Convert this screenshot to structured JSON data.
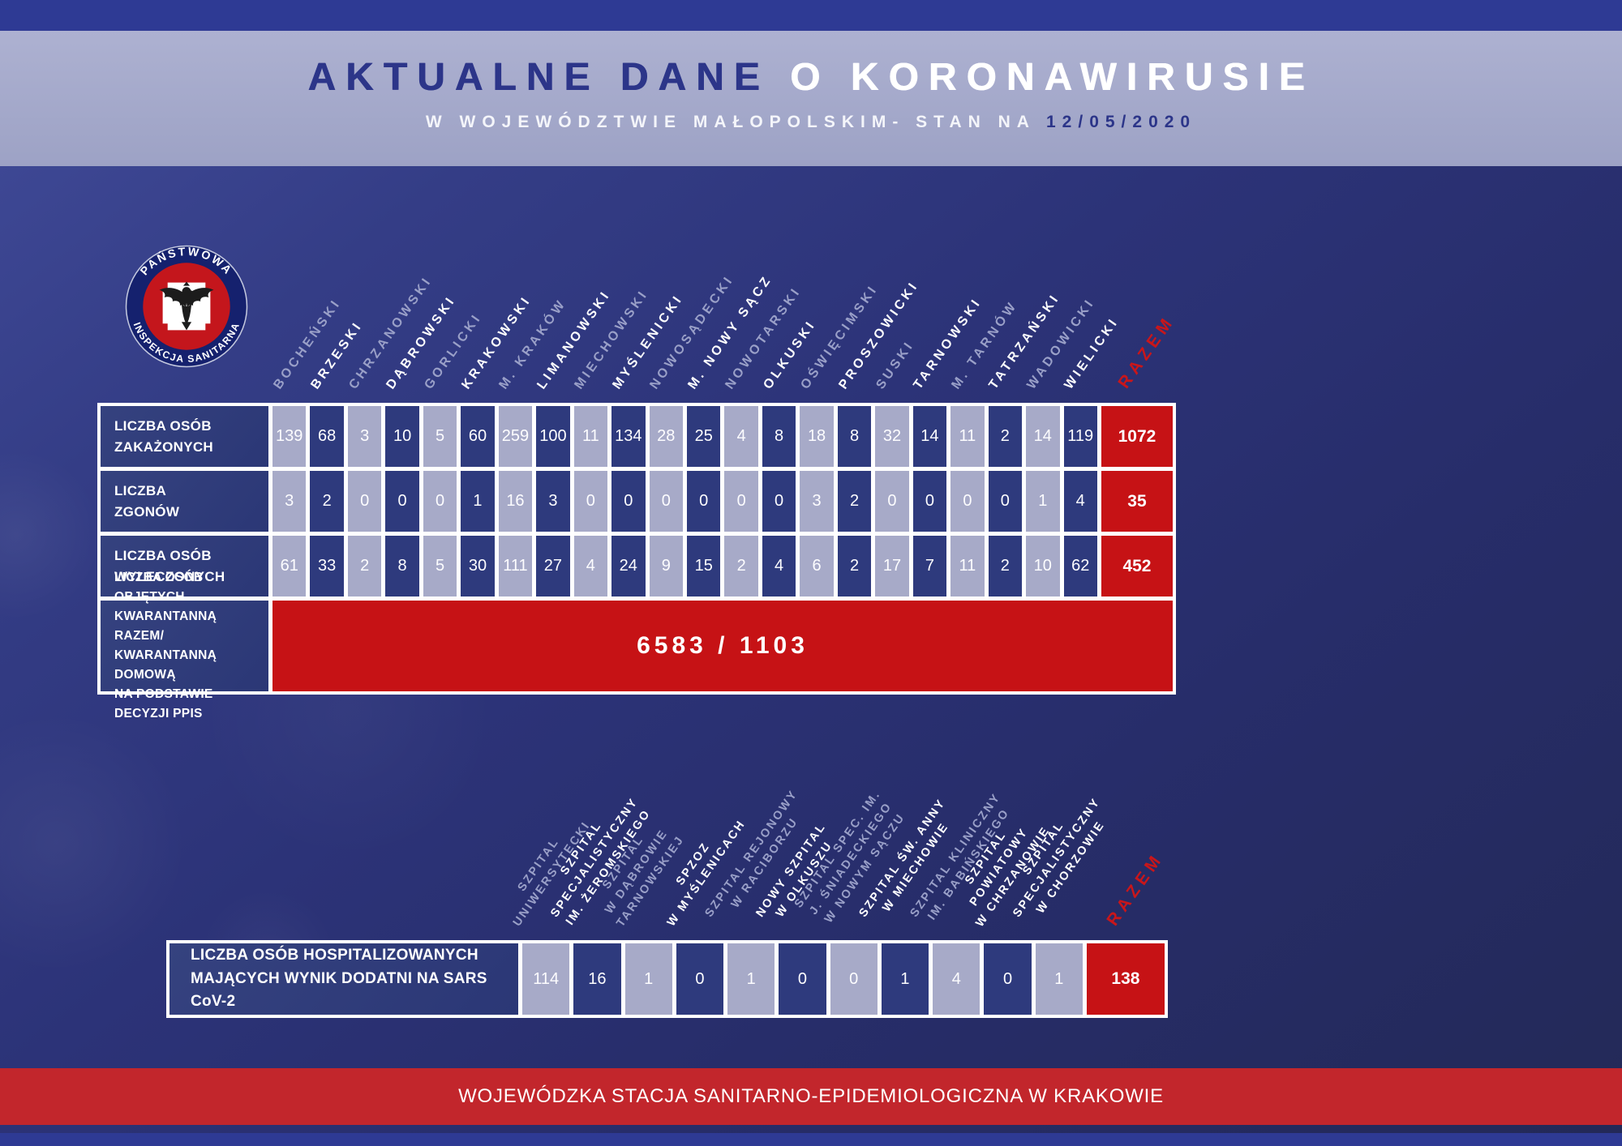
{
  "header": {
    "title_dark": "AKTUALNE DANE",
    "title_light": "O KORONAWIRUSIE",
    "subtitle_prefix": "W WOJEWÓDZTWIE MAŁOPOLSKIM- STAN NA",
    "subtitle_date": "12/05/2020"
  },
  "logo": {
    "top_text": "PAŃSTWOWA",
    "bottom_text": "INSPEKCJA SANITARNA"
  },
  "colors": {
    "accent_red": "#c61215",
    "footer_red": "#c2262c",
    "dark_cell_blue": "#2e3a7d",
    "light_cell_lavender": "#a7aac8",
    "band_lavender": "#a6aacb",
    "strip_blue": "#2e3a94",
    "title_navy": "#2c3589"
  },
  "table1": {
    "columns": [
      {
        "lines": [
          "BOCHEŃSKI"
        ],
        "cell": "light",
        "header": "light"
      },
      {
        "lines": [
          "BRZESKI"
        ],
        "cell": "dark",
        "header": "white"
      },
      {
        "lines": [
          "CHRZANOWSKI"
        ],
        "cell": "light",
        "header": "light"
      },
      {
        "lines": [
          "DĄBROWSKI"
        ],
        "cell": "dark",
        "header": "white"
      },
      {
        "lines": [
          "GORLICKI"
        ],
        "cell": "light",
        "header": "light"
      },
      {
        "lines": [
          "KRAKOWSKI"
        ],
        "cell": "dark",
        "header": "white"
      },
      {
        "lines": [
          "M. KRAKÓW"
        ],
        "cell": "light",
        "header": "light"
      },
      {
        "lines": [
          "LIMANOWSKI"
        ],
        "cell": "dark",
        "header": "white"
      },
      {
        "lines": [
          "MIECHOWSKI"
        ],
        "cell": "light",
        "header": "light"
      },
      {
        "lines": [
          "MYŚLENICKI"
        ],
        "cell": "dark",
        "header": "white"
      },
      {
        "lines": [
          "NOWOSĄDECKI"
        ],
        "cell": "light",
        "header": "light"
      },
      {
        "lines": [
          "M. NOWY SĄCZ"
        ],
        "cell": "dark",
        "header": "white"
      },
      {
        "lines": [
          "NOWOTARSKI"
        ],
        "cell": "light",
        "header": "light"
      },
      {
        "lines": [
          "OLKUSKI"
        ],
        "cell": "dark",
        "header": "white"
      },
      {
        "lines": [
          "OŚWIĘCIMSKI"
        ],
        "cell": "light",
        "header": "light"
      },
      {
        "lines": [
          "PROSZOWICKI"
        ],
        "cell": "dark",
        "header": "white"
      },
      {
        "lines": [
          "SUSKI"
        ],
        "cell": "light",
        "header": "light"
      },
      {
        "lines": [
          "TARNOWSKI"
        ],
        "cell": "dark",
        "header": "white"
      },
      {
        "lines": [
          "M. TARNÓW"
        ],
        "cell": "light",
        "header": "light"
      },
      {
        "lines": [
          "TATRZAŃSKI"
        ],
        "cell": "dark",
        "header": "white"
      },
      {
        "lines": [
          "WADOWICKI"
        ],
        "cell": "light",
        "header": "light"
      },
      {
        "lines": [
          "WIELICKI"
        ],
        "cell": "dark",
        "header": "white"
      }
    ],
    "razem_label": "RAZEM",
    "rows": [
      {
        "label": [
          "LICZBA OSÓB",
          "ZAKAŻONYCH"
        ],
        "values": [
          139,
          68,
          3,
          10,
          5,
          60,
          259,
          100,
          11,
          134,
          28,
          25,
          4,
          8,
          18,
          8,
          32,
          14,
          11,
          2,
          14,
          119
        ],
        "total": "1072"
      },
      {
        "label": [
          "LICZBA",
          "ZGONÓW"
        ],
        "values": [
          3,
          2,
          0,
          0,
          0,
          1,
          16,
          3,
          0,
          0,
          0,
          0,
          0,
          0,
          3,
          2,
          0,
          0,
          0,
          0,
          1,
          4
        ],
        "total": "35"
      },
      {
        "label": [
          "LICZBA OSÓB",
          "WYLECZONYCH"
        ],
        "values": [
          61,
          33,
          2,
          8,
          5,
          30,
          111,
          27,
          4,
          24,
          9,
          15,
          2,
          4,
          6,
          2,
          17,
          7,
          11,
          2,
          10,
          62
        ],
        "total": "452"
      }
    ],
    "quarantine": {
      "label": [
        "LICZBA OSÓB OBJĘTYCH",
        "KWARANTANNĄ RAZEM/",
        "KWARANTANNĄ DOMOWĄ",
        "NA PODSTAWIE DECYZJI PPIS"
      ],
      "value": "6583 / 1103"
    }
  },
  "table2": {
    "columns": [
      {
        "lines": [
          "SZPITAL",
          "UNIWERSYTECKI"
        ],
        "cell": "light",
        "header": "light"
      },
      {
        "lines": [
          "SZPITAL",
          "SPECJALISTYCZNY",
          "IM. ŻEROMSKIEGO"
        ],
        "cell": "dark",
        "header": "white"
      },
      {
        "lines": [
          "SZPITAL",
          "W DĄBROWIE",
          "TARNOWSKIEJ"
        ],
        "cell": "light",
        "header": "light"
      },
      {
        "lines": [
          "SPZOZ",
          "W MYŚLENICACH"
        ],
        "cell": "dark",
        "header": "white"
      },
      {
        "lines": [
          "SZPITAL REJONOWY",
          "W RACIBORZU"
        ],
        "cell": "light",
        "header": "light"
      },
      {
        "lines": [
          "NOWY SZPITAL",
          "W OLKUSZU"
        ],
        "cell": "dark",
        "header": "white"
      },
      {
        "lines": [
          "SZPITAL SPEC. IM.",
          "J. ŚNIADECKIEGO",
          "W NOWYM SĄCZU"
        ],
        "cell": "light",
        "header": "light"
      },
      {
        "lines": [
          "SZPITAL ŚW. ANNY",
          "W MIECHOWIE"
        ],
        "cell": "dark",
        "header": "white"
      },
      {
        "lines": [
          "SZPITAL KLINICZNY",
          "IM. BABIŃSKIEGO"
        ],
        "cell": "light",
        "header": "light"
      },
      {
        "lines": [
          "SZPITAL",
          "POWIATOWY",
          "W CHRZANOWIE"
        ],
        "cell": "dark",
        "header": "white"
      },
      {
        "lines": [
          "SZPITAL",
          "SPECJALISTYCZNY",
          "W CHORZOWIE"
        ],
        "cell": "light",
        "header": "white"
      }
    ],
    "razem_label": "RAZEM",
    "row": {
      "label": [
        "LICZBA OSÓB HOSPITALIZOWANYCH",
        "MAJĄCYCH WYNIK DODATNI NA SARS CoV-2"
      ],
      "values": [
        114,
        16,
        1,
        0,
        1,
        0,
        0,
        1,
        4,
        0,
        1
      ],
      "total": "138"
    }
  },
  "footer": {
    "text": "WOJEWÓDZKA STACJA SANITARNO-EPIDEMIOLOGICZNA W KRAKOWIE"
  },
  "chart_data": [
    {
      "type": "table",
      "title": "AKTUALNE DANE O KORONAWIRUSIE W WOJEWÓDZTWIE MAŁOPOLSKIM - STAN NA 12/05/2020",
      "columns": [
        "BOCHEŃSKI",
        "BRZESKI",
        "CHRZANOWSKI",
        "DĄBROWSKI",
        "GORLICKI",
        "KRAKOWSKI",
        "M. KRAKÓW",
        "LIMANOWSKI",
        "MIECHOWSKI",
        "MYŚLENICKI",
        "NOWOSĄDECKI",
        "M. NOWY SĄCZ",
        "NOWOTARSKI",
        "OLKUSKI",
        "OŚWIĘCIMSKI",
        "PROSZOWICKI",
        "SUSKI",
        "TARNOWSKI",
        "M. TARNÓW",
        "TATRZAŃSKI",
        "WADOWICKI",
        "WIELICKI",
        "RAZEM"
      ],
      "rows": [
        {
          "label": "LICZBA OSÓB ZAKAŻONYCH",
          "values": [
            139,
            68,
            3,
            10,
            5,
            60,
            259,
            100,
            11,
            134,
            28,
            25,
            4,
            8,
            18,
            8,
            32,
            14,
            11,
            2,
            14,
            119
          ],
          "total": 1072
        },
        {
          "label": "LICZBA ZGONÓW",
          "values": [
            3,
            2,
            0,
            0,
            0,
            1,
            16,
            3,
            0,
            0,
            0,
            0,
            0,
            0,
            3,
            2,
            0,
            0,
            0,
            0,
            1,
            4
          ],
          "total": 35
        },
        {
          "label": "LICZBA OSÓB WYLECZONYCH",
          "values": [
            61,
            33,
            2,
            8,
            5,
            30,
            111,
            27,
            4,
            24,
            9,
            15,
            2,
            4,
            6,
            2,
            17,
            7,
            11,
            2,
            10,
            62
          ],
          "total": 452
        },
        {
          "label": "LICZBA OSÓB OBJĘTYCH KWARANTANNĄ RAZEM/ KWARANTANNĄ DOMOWĄ NA PODSTAWIE DECYZJI PPIS",
          "value": "6583 / 1103"
        }
      ]
    },
    {
      "type": "table",
      "columns": [
        "SZPITAL UNIWERSYTECKI",
        "SZPITAL SPECJALISTYCZNY IM. ŻEROMSKIEGO",
        "SZPITAL W DĄBROWIE TARNOWSKIEJ",
        "SPZOZ W MYŚLENICACH",
        "SZPITAL REJONOWY W RACIBORZU",
        "NOWY SZPITAL W OLKUSZU",
        "SZPITAL SPEC. IM. J. ŚNIADECKIEGO W NOWYM SĄCZU",
        "SZPITAL ŚW. ANNY W MIECHOWIE",
        "SZPITAL KLINICZNY IM. BABIŃSKIEGO",
        "SZPITAL POWIATOWY W CHRZANOWIE",
        "SZPITAL SPECJALISTYCZNY W CHORZOWIE",
        "RAZEM"
      ],
      "rows": [
        {
          "label": "LICZBA OSÓB HOSPITALIZOWANYCH MAJĄCYCH WYNIK DODATNI NA SARS CoV-2",
          "values": [
            114,
            16,
            1,
            0,
            1,
            0,
            0,
            1,
            4,
            0,
            1
          ],
          "total": 138
        }
      ]
    }
  ]
}
